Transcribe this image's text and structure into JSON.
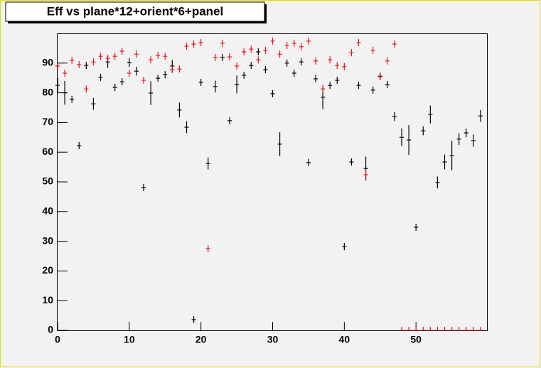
{
  "chart_data": {
    "type": "scatter",
    "title": "Eff vs plane*12+orient*6+panel",
    "x": [
      0,
      1,
      2,
      3,
      4,
      5,
      6,
      7,
      8,
      9,
      10,
      11,
      12,
      13,
      14,
      15,
      16,
      17,
      18,
      19,
      20,
      21,
      22,
      23,
      24,
      25,
      26,
      27,
      28,
      29,
      30,
      31,
      32,
      33,
      34,
      35,
      36,
      37,
      38,
      39,
      40,
      41,
      42,
      43,
      44,
      45,
      46,
      47,
      48,
      49,
      50,
      51,
      52,
      53,
      54,
      55,
      56,
      57,
      58,
      59
    ],
    "series": [
      {
        "color": "#000000",
        "values": [
          82.5,
          80,
          77.8,
          62.2,
          89.2,
          76.3,
          85.2,
          90.4,
          81.8,
          83.7,
          90.2,
          87.3,
          48.1,
          79.9,
          84.9,
          86.1,
          89,
          74.2,
          68.4,
          3.6,
          83.5,
          56.2,
          82.1,
          91.9,
          70.6,
          82.8,
          85.9,
          89.2,
          93.8,
          87.8,
          79.7,
          62.7,
          90,
          86.6,
          90.4,
          56.5,
          84.7,
          78.5,
          82.5,
          84.2,
          28.2,
          56.7,
          82.5,
          54.5,
          80.9,
          85.6,
          82.8,
          72,
          65,
          64.1,
          34.7,
          67.2,
          72.7,
          49.8,
          56.7,
          58.9,
          64.4,
          66.5,
          63.9,
          72.2
        ],
        "errors": [
          2.5,
          4,
          1.2,
          1.2,
          1.2,
          2,
          1.2,
          2,
          1.2,
          1.2,
          1.5,
          1.5,
          1.2,
          4,
          1.2,
          1.2,
          2,
          2.5,
          2,
          0.3,
          1.2,
          2,
          2,
          1.2,
          1.2,
          3,
          1.2,
          1.2,
          1.2,
          1.2,
          1.2,
          4,
          1.2,
          1.2,
          1.2,
          1.2,
          1.2,
          4,
          1.2,
          1.2,
          1.2,
          1.2,
          1.2,
          4,
          1.2,
          1.2,
          1.2,
          1.5,
          3,
          5,
          1.2,
          1.5,
          3,
          2,
          2.5,
          5,
          2,
          1.5,
          2,
          2
        ]
      },
      {
        "color": "#e8141e",
        "values": [
          89,
          86.6,
          90.9,
          89.5,
          81.3,
          90.4,
          92.3,
          91.6,
          92.3,
          94,
          86.6,
          93,
          84.2,
          91.1,
          92.6,
          92.3,
          87.8,
          88,
          95.7,
          96.4,
          96.9,
          27.5,
          91.9,
          96.7,
          92.1,
          89,
          93.8,
          94.7,
          91.1,
          94.3,
          97.4,
          93,
          95.9,
          96.7,
          95.5,
          97.4,
          90.7,
          81.3,
          91.1,
          89.2,
          88.8,
          93.5,
          96.9,
          52.4,
          94.3,
          85.4,
          90.7,
          96.4,
          0,
          0,
          0,
          0,
          0,
          0,
          0,
          0,
          0,
          0,
          0,
          0
        ],
        "errors": [
          0.8,
          0.8,
          0.8,
          0.8,
          0.8,
          0.8,
          0.8,
          0.8,
          0.8,
          0.8,
          0.8,
          0.8,
          0.8,
          0.8,
          0.8,
          0.8,
          0.8,
          0.8,
          0.8,
          0.8,
          0.8,
          1,
          0.8,
          0.8,
          0.8,
          0.8,
          0.8,
          0.8,
          0.8,
          0.8,
          0.8,
          0.8,
          0.8,
          0.8,
          0.8,
          0.8,
          0.8,
          0.8,
          0.8,
          0.8,
          0.8,
          0.8,
          0.8,
          1.5,
          0.8,
          0.8,
          0.8,
          0.8,
          0,
          0,
          0,
          0,
          0,
          0,
          0,
          0,
          0,
          0,
          0,
          0
        ]
      }
    ],
    "xlim": [
      0,
      60
    ],
    "ylim": [
      0,
      100
    ],
    "xticks": [
      0,
      10,
      20,
      30,
      40,
      50
    ],
    "yticks": [
      0,
      10,
      20,
      30,
      40,
      50,
      60,
      70,
      80,
      90
    ],
    "grid": false
  }
}
